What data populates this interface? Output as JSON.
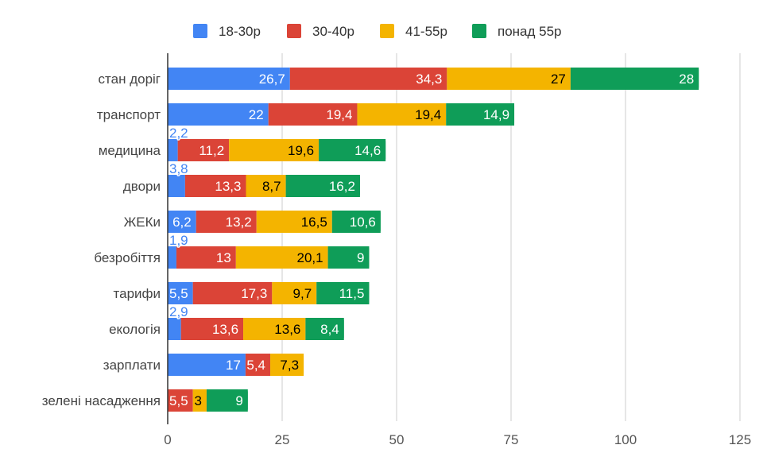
{
  "chart_data": {
    "type": "bar",
    "orientation": "horizontal",
    "stacked": true,
    "title": "",
    "xlabel": "",
    "ylabel": "",
    "xlim": [
      0,
      125
    ],
    "x_ticks": [
      0,
      25,
      50,
      75,
      100,
      125
    ],
    "grid": true,
    "legend_position": "top",
    "categories": [
      "стан доріг",
      "транспорт",
      "медицина",
      "двори",
      "ЖЕКи",
      "безробіття",
      "тарифи",
      "екологія",
      "зарплати",
      "зелені насадження"
    ],
    "series": [
      {
        "name": "18-30р",
        "color": "#4285f4",
        "label_color": "#ffffff",
        "values": [
          26.7,
          22,
          2.2,
          3.8,
          6.2,
          1.9,
          5.5,
          2.9,
          17,
          null
        ]
      },
      {
        "name": "30-40р",
        "color": "#db4437",
        "label_color": "#ffffff",
        "values": [
          34.3,
          19.4,
          11.2,
          13.3,
          13.2,
          13,
          17.3,
          13.6,
          5.4,
          5.5
        ]
      },
      {
        "name": "41-55р",
        "color": "#f4b400",
        "label_color": "#000000",
        "values": [
          27,
          19.4,
          19.6,
          8.7,
          16.5,
          20.1,
          9.7,
          13.6,
          7.3,
          3
        ]
      },
      {
        "name": "понад 55р",
        "color": "#0f9d58",
        "label_color": "#ffffff",
        "values": [
          28,
          14.9,
          14.6,
          16.2,
          10.6,
          9,
          11.5,
          8.4,
          null,
          9
        ]
      }
    ]
  }
}
